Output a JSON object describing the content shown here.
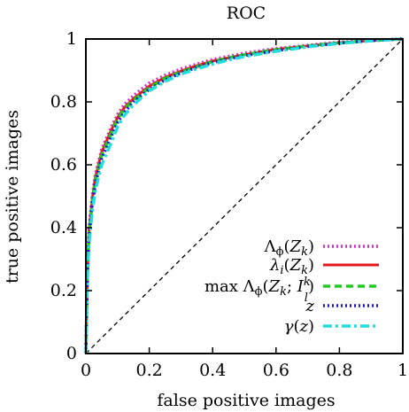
{
  "chart_data": {
    "type": "line",
    "title": "ROC",
    "xlabel": "false positive images",
    "ylabel": "true positive images",
    "xlim": [
      0,
      1
    ],
    "ylim": [
      0,
      1
    ],
    "xticks": [
      "0",
      "0.2",
      "0.4",
      "0.6",
      "0.8",
      "1"
    ],
    "yticks": [
      "0",
      "0.2",
      "0.4",
      "0.6",
      "0.8",
      "1"
    ],
    "legend_position": "bottom-right",
    "grid": false,
    "reference_line": {
      "x": [
        0,
        1
      ],
      "y": [
        0,
        1
      ],
      "color": "#000000",
      "style": "dashed"
    },
    "series": [
      {
        "name": "Λϕ(Zk)",
        "color": "#cc33cc",
        "style": "dotted",
        "x": [
          0,
          0.005,
          0.01,
          0.02,
          0.03,
          0.05,
          0.08,
          0.1,
          0.12,
          0.15,
          0.2,
          0.25,
          0.3,
          0.35,
          0.4,
          0.45,
          0.5,
          0.6,
          0.7,
          0.8,
          0.9,
          1.0
        ],
        "y": [
          0,
          0.28,
          0.4,
          0.5,
          0.57,
          0.65,
          0.72,
          0.76,
          0.79,
          0.82,
          0.86,
          0.885,
          0.905,
          0.92,
          0.935,
          0.945,
          0.955,
          0.97,
          0.98,
          0.99,
          0.995,
          1.0
        ]
      },
      {
        "name": "λi(Zk)",
        "color": "#e31a1c",
        "style": "solid",
        "x": [
          0,
          0.005,
          0.01,
          0.02,
          0.03,
          0.05,
          0.08,
          0.1,
          0.12,
          0.15,
          0.2,
          0.25,
          0.3,
          0.35,
          0.4,
          0.45,
          0.5,
          0.6,
          0.7,
          0.8,
          0.9,
          1.0
        ],
        "y": [
          0,
          0.27,
          0.39,
          0.49,
          0.56,
          0.64,
          0.71,
          0.75,
          0.78,
          0.81,
          0.85,
          0.878,
          0.898,
          0.915,
          0.93,
          0.94,
          0.95,
          0.967,
          0.978,
          0.988,
          0.995,
          1.0
        ]
      },
      {
        "name": "max Λϕ(Zk; Il^k)",
        "color": "#22cc22",
        "style": "dashed",
        "x": [
          0,
          0.005,
          0.01,
          0.02,
          0.03,
          0.05,
          0.08,
          0.1,
          0.12,
          0.15,
          0.2,
          0.25,
          0.3,
          0.35,
          0.4,
          0.45,
          0.5,
          0.6,
          0.7,
          0.8,
          0.9,
          1.0
        ],
        "y": [
          0,
          0.27,
          0.38,
          0.48,
          0.55,
          0.63,
          0.7,
          0.745,
          0.775,
          0.805,
          0.845,
          0.875,
          0.895,
          0.912,
          0.928,
          0.94,
          0.95,
          0.966,
          0.978,
          0.988,
          0.995,
          1.0
        ]
      },
      {
        "name": "z",
        "color": "#1a1acc",
        "style": "dotted",
        "x": [
          0,
          0.005,
          0.01,
          0.02,
          0.03,
          0.05,
          0.08,
          0.1,
          0.12,
          0.15,
          0.2,
          0.25,
          0.3,
          0.35,
          0.4,
          0.45,
          0.5,
          0.6,
          0.7,
          0.8,
          0.9,
          1.0
        ],
        "y": [
          0,
          0.26,
          0.37,
          0.47,
          0.54,
          0.62,
          0.69,
          0.735,
          0.765,
          0.8,
          0.84,
          0.87,
          0.892,
          0.91,
          0.925,
          0.937,
          0.947,
          0.963,
          0.976,
          0.987,
          0.995,
          1.0
        ]
      },
      {
        "name": "γ(z)",
        "color": "#22dddd",
        "style": "dashdot",
        "x": [
          0,
          0.005,
          0.01,
          0.02,
          0.03,
          0.05,
          0.08,
          0.1,
          0.12,
          0.15,
          0.2,
          0.25,
          0.3,
          0.35,
          0.4,
          0.45,
          0.5,
          0.6,
          0.7,
          0.8,
          0.9,
          1.0
        ],
        "y": [
          0,
          0.24,
          0.35,
          0.45,
          0.52,
          0.6,
          0.67,
          0.72,
          0.755,
          0.79,
          0.835,
          0.865,
          0.888,
          0.905,
          0.92,
          0.933,
          0.944,
          0.961,
          0.975,
          0.986,
          0.994,
          1.0
        ]
      }
    ]
  },
  "legend": {
    "labels": [
      "Λϕ(Zk)",
      "λi(Zk)",
      "max Λϕ(Zk; Il^k)",
      "z",
      "γ(z)"
    ]
  }
}
